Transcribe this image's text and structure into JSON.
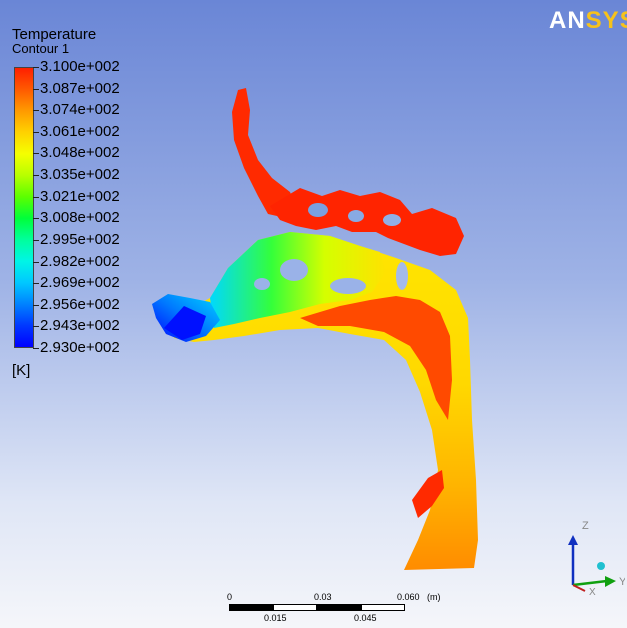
{
  "title": "Temperature",
  "subtitle": "Contour 1",
  "legend": {
    "ticks": [
      "3.100e+002",
      "3.087e+002",
      "3.074e+002",
      "3.061e+002",
      "3.048e+002",
      "3.035e+002",
      "3.021e+002",
      "3.008e+002",
      "2.995e+002",
      "2.982e+002",
      "2.969e+002",
      "2.956e+002",
      "2.943e+002",
      "2.930e+002"
    ],
    "unit": "[K]",
    "colors_top_to_bottom": [
      "#ff1f00",
      "#ff5a00",
      "#ff9a00",
      "#ffd200",
      "#f5ff00",
      "#b8ff00",
      "#5cff00",
      "#00ff3a",
      "#00ff9c",
      "#00f5e6",
      "#00c8ff",
      "#0082ff",
      "#0038ff",
      "#0000ff"
    ]
  },
  "logo": {
    "part1": "AN",
    "part2": "SYS"
  },
  "scale_bar": {
    "top_labels": [
      "0",
      "0.03",
      "0.060"
    ],
    "unit": "(m)",
    "bottom_labels": [
      "0.015",
      "0.045"
    ]
  },
  "axes": {
    "z": "Z",
    "y": "Y",
    "x": "X"
  },
  "colors": {
    "bg_top": "#6a86d6",
    "bg_bottom": "#f5f6fa"
  }
}
